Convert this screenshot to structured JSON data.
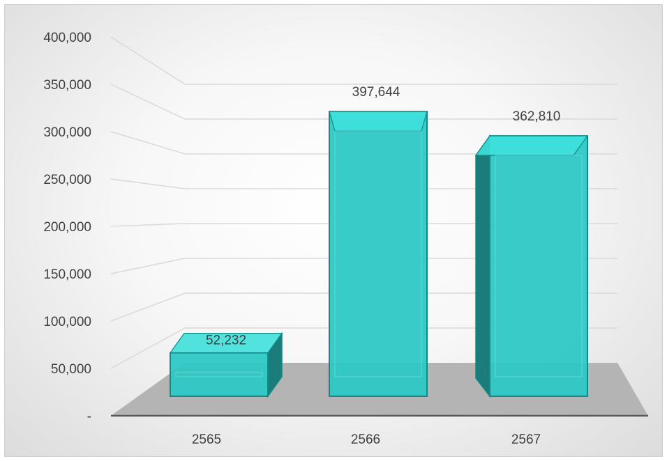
{
  "chart_data": {
    "type": "bar",
    "style": "3d-column",
    "categories": [
      "2565",
      "2566",
      "2567"
    ],
    "values": [
      52232,
      397644,
      362810
    ],
    "data_labels": [
      "52,232",
      "397,644",
      "362,810"
    ],
    "y_ticks": [
      {
        "value": 0,
        "label": "-"
      },
      {
        "value": 50000,
        "label": "50,000"
      },
      {
        "value": 100000,
        "label": "100,000"
      },
      {
        "value": 150000,
        "label": "150,000"
      },
      {
        "value": 200000,
        "label": "200,000"
      },
      {
        "value": 250000,
        "label": "250,000"
      },
      {
        "value": 300000,
        "label": "300,000"
      },
      {
        "value": 350000,
        "label": "350,000"
      },
      {
        "value": 400000,
        "label": "400,000"
      }
    ],
    "ylim": [
      0,
      400000
    ],
    "grid": true,
    "legend": "none",
    "colors": {
      "bar_front": "#2ec8c4",
      "bar_top": "#3fe0db",
      "bar_side": "#1a7d7a",
      "bar_edge": "#128a87",
      "floor": "#b4b4b4",
      "gridline": "#d9d9d9",
      "axis": "#595959"
    }
  }
}
